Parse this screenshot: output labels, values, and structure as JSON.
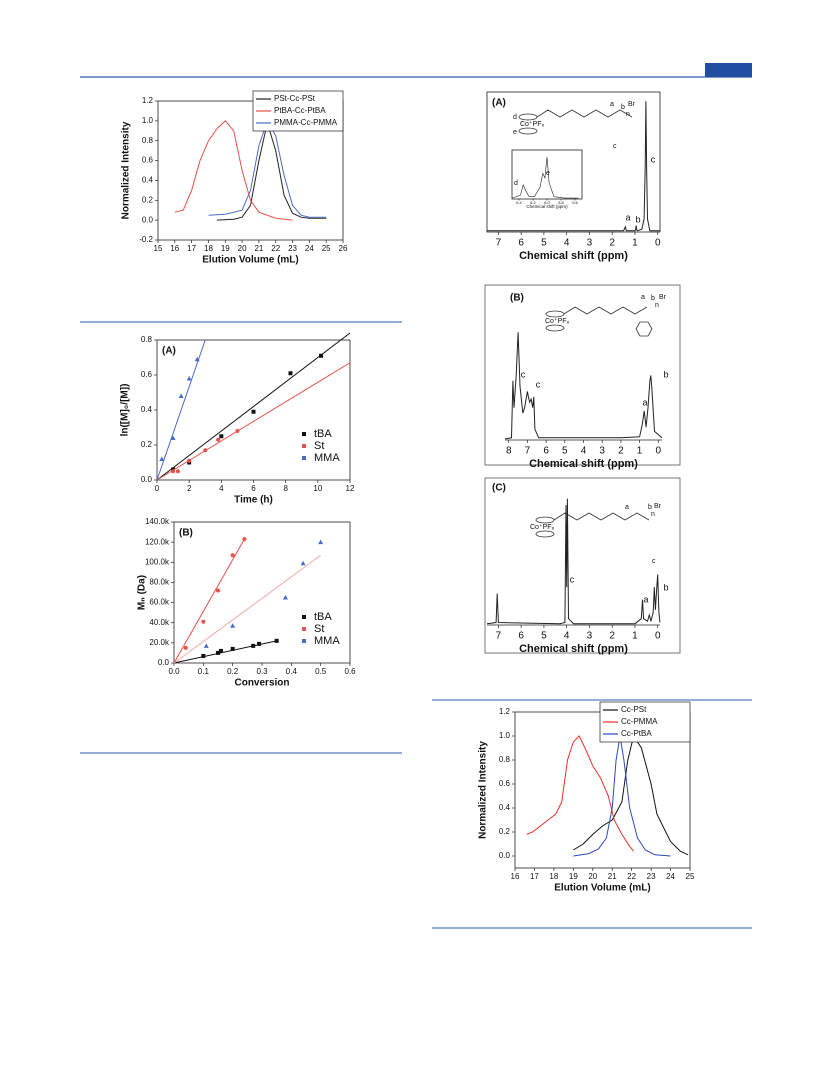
{
  "chart_data": [
    {
      "type": "line",
      "xlabel": "Elution Volume (mL)",
      "ylabel": "Normalized Intensity",
      "xlim": [
        15,
        26
      ],
      "xticks": [
        15,
        16,
        17,
        18,
        19,
        20,
        21,
        22,
        23,
        24,
        25,
        26
      ],
      "ylim": [
        -0.2,
        1.2
      ],
      "yticks": [
        -0.2,
        {
          "value": 0,
          "label": "0.0"
        },
        0.2,
        0.4,
        0.6,
        0.8,
        {
          "value": 1,
          "label": "1.0"
        },
        1.2
      ],
      "legend": "upper right",
      "series": [
        {
          "name": "PSt-Cc-PSt",
          "color": "#222222",
          "x": [
            18.5,
            19.5,
            20,
            20.5,
            21,
            21.5,
            22,
            22.5,
            23,
            23.5,
            24,
            25
          ],
          "values": [
            0,
            0.01,
            0.03,
            0.15,
            0.6,
            0.98,
            0.7,
            0.25,
            0.07,
            0.03,
            0.02,
            0.02
          ]
        },
        {
          "name": "PtBA-Cc-PtBA",
          "color": "#e8504a",
          "x": [
            16,
            16.5,
            17,
            17.5,
            18,
            18.5,
            19,
            19.5,
            20,
            20.5,
            21,
            22,
            23
          ],
          "values": [
            0.08,
            0.1,
            0.3,
            0.6,
            0.8,
            0.92,
            1.0,
            0.9,
            0.5,
            0.2,
            0.08,
            0.02,
            0
          ]
        },
        {
          "name": "PMMA-Cc-PMMA",
          "color": "#4a6bc8",
          "x": [
            18,
            19,
            20,
            20.5,
            21,
            21.5,
            22,
            22.5,
            23,
            23.5,
            24,
            25
          ],
          "values": [
            0.05,
            0.06,
            0.1,
            0.3,
            0.75,
            1.0,
            0.85,
            0.45,
            0.15,
            0.05,
            0.03,
            0.03
          ]
        }
      ]
    },
    {
      "type": "scatter",
      "title": "(A)",
      "xlabel": "Time (h)",
      "ylabel": "ln([M]₀/[M])",
      "xlim": [
        0,
        12
      ],
      "xticks": [
        0,
        2,
        4,
        6,
        8,
        10,
        12
      ],
      "ylim": [
        0,
        0.8
      ],
      "yticks": [
        {
          "value": 0,
          "label": "0.0"
        },
        0.2,
        0.4,
        0.6,
        0.8
      ],
      "legend": "lower right",
      "series": [
        {
          "name": "tBA",
          "color": "#111111",
          "marker": "square",
          "x": [
            1,
            2,
            4,
            6,
            8.3,
            10.2
          ],
          "values": [
            0.06,
            0.1,
            0.25,
            0.39,
            0.61,
            0.71
          ],
          "fit_x": [
            0,
            12
          ],
          "fit_y": [
            0,
            0.84
          ]
        },
        {
          "name": "St",
          "color": "#e8504a",
          "marker": "circle",
          "x": [
            1,
            1.3,
            2,
            3,
            3.8,
            5
          ],
          "values": [
            0.05,
            0.05,
            0.11,
            0.17,
            0.23,
            0.28
          ],
          "fit_x": [
            0,
            12
          ],
          "fit_y": [
            0,
            0.67
          ]
        },
        {
          "name": "MMA",
          "color": "#4a6bc8",
          "marker": "triangle",
          "x": [
            0.3,
            1,
            1.5,
            2,
            2.5
          ],
          "values": [
            0.12,
            0.24,
            0.48,
            0.58,
            0.69
          ],
          "fit_x": [
            0,
            3
          ],
          "fit_y": [
            0,
            0.8
          ]
        }
      ]
    },
    {
      "type": "scatter",
      "title": "(B)",
      "xlabel": "Conversion",
      "ylabel": "Mₙ (Da)",
      "xlim": [
        0,
        0.6
      ],
      "xticks": [
        {
          "value": 0,
          "label": "0.0"
        },
        0.1,
        0.2,
        0.3,
        0.4,
        0.5,
        0.6
      ],
      "ylim": [
        0,
        140000
      ],
      "yticks": [
        {
          "value": 0,
          "label": "0.0"
        },
        {
          "value": 20000,
          "label": "20.0k"
        },
        {
          "value": 40000,
          "label": "40.0k"
        },
        {
          "value": 60000,
          "label": "60.0k"
        },
        {
          "value": 80000,
          "label": "80.0k"
        },
        {
          "value": 100000,
          "label": "100.0k"
        },
        {
          "value": 120000,
          "label": "120.0k"
        },
        {
          "value": 140000,
          "label": "140.0k"
        }
      ],
      "legend": "lower right",
      "series": [
        {
          "name": "tBA",
          "color": "#111111",
          "marker": "square",
          "x": [
            0.1,
            0.15,
            0.16,
            0.2,
            0.27,
            0.29,
            0.35
          ],
          "values": [
            7000,
            10000,
            12000,
            14000,
            17000,
            19000,
            22000
          ],
          "fit_x": [
            0,
            0.35
          ],
          "fit_y": [
            0,
            22000
          ]
        },
        {
          "name": "St",
          "color": "#e8504a",
          "marker": "circle",
          "x": [
            0.04,
            0.1,
            0.15,
            0.2,
            0.24
          ],
          "values": [
            15000,
            41000,
            72000,
            107000,
            123000
          ],
          "fit_x": [
            0,
            0.24
          ],
          "fit_y": [
            0,
            123000
          ]
        },
        {
          "name": "MMA",
          "color": "#4a6bc8",
          "marker": "triangle",
          "x": [
            0.11,
            0.2,
            0.38,
            0.44,
            0.5
          ],
          "values": [
            17000,
            37000,
            65000,
            99000,
            120000
          ],
          "fit_x": [
            0,
            0.5
          ],
          "fit_y": [
            0,
            107000
          ],
          "fit_color": "#f2a9a4"
        }
      ]
    },
    {
      "type": "line",
      "title": "(A)",
      "xlabel": "Chemical shift (ppm)",
      "xlim": [
        7.5,
        -0.1
      ],
      "xticks": [
        7,
        6,
        5,
        4,
        3,
        2,
        1,
        0
      ],
      "ylim": [
        0,
        1.07
      ],
      "annotations": [
        "a",
        "b",
        "c"
      ],
      "structure_labels": [
        "d",
        "e",
        "Co⁺PF₆",
        "a",
        "b",
        "Br",
        "n",
        "c"
      ],
      "series": [
        {
          "color": "#222222",
          "x": [
            7.5,
            2.0,
            1.5,
            1.42,
            1.38,
            1.3,
            1.0,
            0.97,
            0.95,
            0.93,
            0.9,
            0.7,
            0.6,
            0.55,
            0.52,
            0.49,
            0.45,
            0.35,
            -0.1
          ],
          "values": [
            0.01,
            0.01,
            0.01,
            0.04,
            0.01,
            0.01,
            0.01,
            0.02,
            0.05,
            0.02,
            0.01,
            0.02,
            0.1,
            0.5,
            1.0,
            0.5,
            0.1,
            0.01,
            0.01
          ]
        }
      ]
    },
    {
      "type": "line",
      "xlabel": "Chemical shift (ppm)",
      "xlim": [
        6.5,
        5.5
      ],
      "xticks": [
        6.4,
        6.2,
        {
          "value": 6,
          "label": "6.0"
        },
        5.8,
        5.6
      ],
      "ylim": [
        0,
        1.05
      ],
      "annotations": [
        "d",
        "e"
      ],
      "series": [
        {
          "color": "#222222",
          "x": [
            6.5,
            6.38,
            6.34,
            6.31,
            6.26,
            6.18,
            6.1,
            6.06,
            6.03,
            6.0,
            5.97,
            5.9,
            5.75,
            5.55
          ],
          "values": [
            0.02,
            0.08,
            0.3,
            0.2,
            0.06,
            0.05,
            0.25,
            0.55,
            0.45,
            0.9,
            0.35,
            0.05,
            0.02,
            0.02
          ]
        }
      ]
    },
    {
      "type": "line",
      "title": "(B)",
      "xlabel": "Chemical shift (ppm)",
      "xlim": [
        8.2,
        -0.2
      ],
      "xticks": [
        8,
        7,
        6,
        5,
        4,
        3,
        2,
        1,
        0
      ],
      "ylim": [
        0,
        1.3
      ],
      "annotations": [
        "c",
        "c",
        "a",
        "b"
      ],
      "structure_labels": [
        "Co⁺PF₆",
        "a",
        "b",
        "Br",
        "n"
      ],
      "series": [
        {
          "color": "#222222",
          "x": [
            8.2,
            7.85,
            7.78,
            7.72,
            7.6,
            7.5,
            7.4,
            7.25,
            7.15,
            7.0,
            6.95,
            6.88,
            6.8,
            6.72,
            6.66,
            6.6,
            6.4,
            2.0,
            1.0,
            0.85,
            0.75,
            0.65,
            0.55,
            0.45,
            0.4,
            0.35,
            0.2,
            -0.2
          ],
          "values": [
            0.01,
            0.02,
            0.55,
            0.3,
            0.6,
            1.0,
            0.5,
            0.25,
            0.3,
            0.45,
            0.4,
            0.35,
            0.38,
            0.3,
            0.4,
            0.1,
            0.02,
            0.02,
            0.03,
            0.15,
            0.27,
            0.12,
            0.3,
            0.55,
            0.6,
            0.5,
            0.08,
            0.02
          ]
        }
      ]
    },
    {
      "type": "line",
      "title": "(C)",
      "xlabel": "Chemical shift (ppm)",
      "xlim": [
        7.5,
        -0.1
      ],
      "xticks": [
        7,
        6,
        5,
        4,
        3,
        2,
        1,
        0
      ],
      "ylim": [
        0,
        1.07
      ],
      "annotations": [
        "c",
        "a",
        "b"
      ],
      "structure_labels": [
        "Co⁺PF₆",
        "a",
        "b",
        "Br",
        "n",
        "c"
      ],
      "series": [
        {
          "color": "#222222",
          "x": [
            7.5,
            7.1,
            7.05,
            7.0,
            4.3,
            4.08,
            4.03,
            4.0,
            3.97,
            3.92,
            3.7,
            1.0,
            0.72,
            0.67,
            0.62,
            0.45,
            0.37,
            0.3,
            0.2,
            0.15,
            0.1,
            0.04,
            0.0,
            -0.05,
            -0.1
          ],
          "values": [
            0.01,
            0.02,
            0.25,
            0.02,
            0.01,
            0.02,
            0.95,
            0.3,
            1.0,
            0.05,
            0.01,
            0.01,
            0.05,
            0.2,
            0.05,
            0.03,
            0.08,
            0.03,
            0.1,
            0.3,
            0.12,
            0.3,
            0.4,
            0.1,
            0.02
          ]
        }
      ]
    },
    {
      "type": "line",
      "xlabel": "Elution Volume (mL)",
      "ylabel": "Normalized Intensity",
      "xlim": [
        16,
        25
      ],
      "xticks": [
        16,
        17,
        18,
        19,
        20,
        21,
        22,
        23,
        24,
        25
      ],
      "ylim": [
        -0.1,
        1.2
      ],
      "yticks": [
        {
          "value": 0,
          "label": "0.0"
        },
        0.2,
        0.4,
        0.6,
        0.8,
        {
          "value": 1,
          "label": "1.0"
        },
        1.2
      ],
      "legend": "upper right",
      "series": [
        {
          "name": "Cc-PSt",
          "color": "#111111",
          "x": [
            19,
            19.5,
            20,
            20.5,
            21,
            21.5,
            21.8,
            22.1,
            22.5,
            23,
            23.3,
            23.6,
            24,
            24.5,
            24.9
          ],
          "values": [
            0.05,
            0.1,
            0.18,
            0.25,
            0.3,
            0.45,
            0.8,
            1.0,
            0.9,
            0.6,
            0.35,
            0.25,
            0.12,
            0.04,
            0.01
          ]
        },
        {
          "name": "Cc-PMMA",
          "color": "#e8302a",
          "x": [
            16.6,
            16.9,
            17.3,
            17.7,
            18.1,
            18.4,
            18.7,
            19,
            19.3,
            19.6,
            20,
            20.4,
            20.8,
            21.1,
            21.5,
            21.9,
            22.1
          ],
          "values": [
            0.18,
            0.2,
            0.25,
            0.3,
            0.35,
            0.45,
            0.8,
            0.95,
            1.0,
            0.9,
            0.75,
            0.65,
            0.5,
            0.3,
            0.18,
            0.08,
            0.04
          ]
        },
        {
          "name": "Cc-PtBA",
          "color": "#2a4bc0",
          "x": [
            19,
            19.8,
            20.3,
            20.7,
            21,
            21.2,
            21.4,
            21.6,
            21.9,
            22.3,
            22.7,
            23.2,
            24
          ],
          "values": [
            0,
            0.02,
            0.06,
            0.15,
            0.4,
            0.8,
            1.0,
            0.8,
            0.4,
            0.15,
            0.05,
            0.01,
            0
          ]
        }
      ]
    }
  ]
}
